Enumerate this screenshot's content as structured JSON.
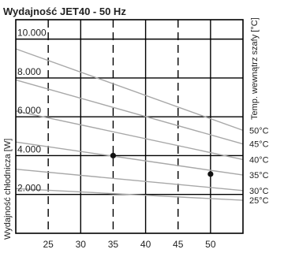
{
  "chart_data": {
    "type": "line",
    "title": "Wydajność JET40 - 50 Hz",
    "xlabel": "",
    "ylabel": "Wydajność chłodnicza [W]",
    "y2label": "Temp. wewnątrz szafy [°C]",
    "xlim": [
      20,
      55
    ],
    "ylim": [
      0,
      11000
    ],
    "x_ticks": [
      25,
      30,
      35,
      40,
      45,
      50
    ],
    "x_tick_labels": [
      "25",
      "30",
      "35",
      "40",
      "45",
      "50"
    ],
    "y_ticks": [
      2000,
      4000,
      6000,
      8000,
      10000
    ],
    "y_tick_labels": [
      "2.000",
      "4.000",
      "6.000",
      "8.000",
      "10.000"
    ],
    "grid": true,
    "series": [
      {
        "name": "50°C",
        "x": [
          20,
          55
        ],
        "y": [
          9500,
          5300
        ]
      },
      {
        "name": "45°C",
        "x": [
          20,
          55
        ],
        "y": [
          7900,
          4600
        ]
      },
      {
        "name": "40°C",
        "x": [
          20,
          55
        ],
        "y": [
          6300,
          3800
        ]
      },
      {
        "name": "35°C",
        "x": [
          20,
          55
        ],
        "y": [
          4700,
          3000
        ]
      },
      {
        "name": "30°C",
        "x": [
          20,
          55
        ],
        "y": [
          3300,
          2200
        ]
      },
      {
        "name": "25°C",
        "x": [
          20,
          55
        ],
        "y": [
          2300,
          1700
        ]
      }
    ],
    "markers": [
      {
        "x": 35,
        "y": 4000
      },
      {
        "x": 50,
        "y": 3050
      }
    ],
    "colors": {
      "series": "#a8a8a8",
      "grid": "#000000",
      "marker": "#111111"
    }
  }
}
